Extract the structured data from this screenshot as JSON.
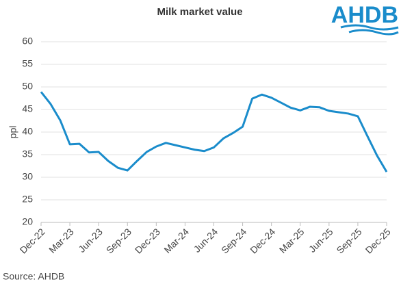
{
  "chart_data": {
    "type": "line",
    "title": "Milk market value",
    "y_label": "ppl",
    "source": "Source: AHDB",
    "logo": "AHDB",
    "categories": [
      "Dec-22",
      null,
      null,
      "Mar-23",
      null,
      null,
      "Jun-23",
      null,
      null,
      "Sep-23",
      null,
      null,
      "Dec-23",
      null,
      null,
      "Mar-24",
      null,
      null,
      "Jun-24",
      null,
      null,
      "Sep-24",
      null,
      null,
      "Dec-24",
      null,
      null,
      "Mar-25",
      null,
      null,
      "Jun-25",
      null,
      null,
      "Sep-25",
      null,
      null,
      "Dec-25"
    ],
    "series": [
      {
        "name": "Milk market value",
        "color": "#1a8ccb",
        "values": [
          48.9,
          46.2,
          42.6,
          37.3,
          37.4,
          35.5,
          35.6,
          33.6,
          32.1,
          31.5,
          33.6,
          35.6,
          36.8,
          37.6,
          37.1,
          36.6,
          36.1,
          35.8,
          36.6,
          38.6,
          39.8,
          41.2,
          47.4,
          48.3,
          47.6,
          46.5,
          45.4,
          44.8,
          45.6,
          45.5,
          44.7,
          44.4,
          44.1,
          43.5,
          39.1,
          34.8,
          31.2
        ]
      }
    ],
    "ylim": [
      20,
      60
    ],
    "yticks": [
      20,
      25,
      30,
      35,
      40,
      45,
      50,
      55,
      60
    ],
    "grid": true
  }
}
